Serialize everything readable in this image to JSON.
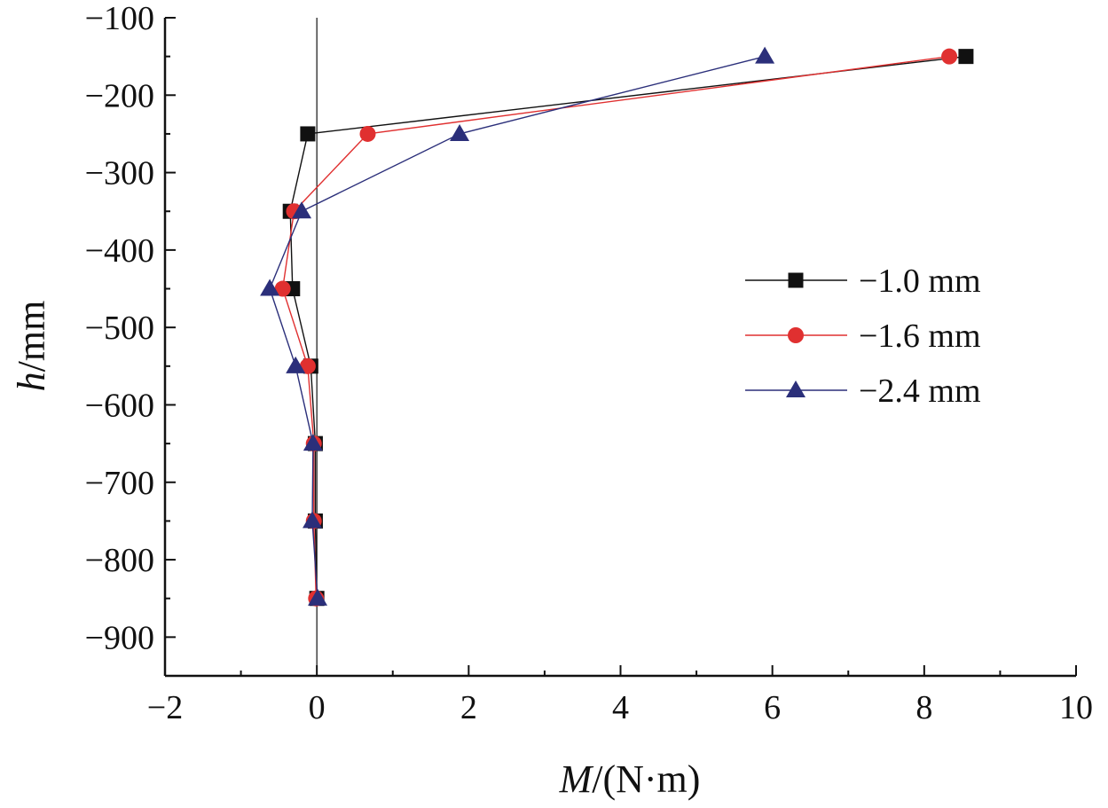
{
  "chart_data": {
    "type": "line",
    "xlabel_italic": "M",
    "xlabel_rest": "/(N·m)",
    "ylabel_italic": "h",
    "ylabel_rest": "/mm",
    "xlim": [
      -2,
      10
    ],
    "ylim": [
      -950,
      -100
    ],
    "xticks": [
      -2,
      0,
      2,
      4,
      6,
      8,
      10
    ],
    "xtick_labels": [
      "−2",
      "0",
      "2",
      "4",
      "6",
      "8",
      "10"
    ],
    "yticks": [
      -100,
      -200,
      -300,
      -400,
      -500,
      -600,
      -700,
      -800,
      -900
    ],
    "ytick_labels": [
      "−100",
      "−200",
      "−300",
      "−400",
      "−500",
      "−600",
      "−700",
      "−800",
      "−900"
    ],
    "legend_position": "right-middle",
    "series": [
      {
        "name": "−1.0 mm",
        "color": "#111111",
        "marker": "square",
        "x": [
          8.55,
          -0.12,
          -0.35,
          -0.32,
          -0.08,
          -0.02,
          -0.02,
          0.0
        ],
        "y": [
          -150,
          -250,
          -350,
          -450,
          -550,
          -650,
          -750,
          -850
        ]
      },
      {
        "name": "−1.6 mm",
        "color": "#e03030",
        "marker": "circle",
        "x": [
          8.33,
          0.67,
          -0.3,
          -0.45,
          -0.12,
          -0.04,
          -0.04,
          -0.01
        ],
        "y": [
          -150,
          -250,
          -350,
          -450,
          -550,
          -650,
          -750,
          -850
        ]
      },
      {
        "name": "−2.4 mm",
        "color": "#2b2f7a",
        "marker": "triangle",
        "x": [
          5.9,
          1.88,
          -0.2,
          -0.62,
          -0.28,
          -0.05,
          -0.06,
          0.01
        ],
        "y": [
          -150,
          -250,
          -350,
          -450,
          -550,
          -650,
          -750,
          -850
        ]
      }
    ]
  }
}
